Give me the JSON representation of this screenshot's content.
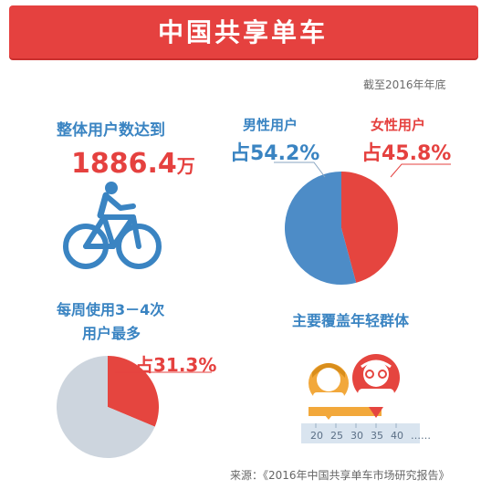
{
  "header": {
    "title": "中国共享单车",
    "as_of": "截至2016年年底"
  },
  "users": {
    "label": "整体用户数达到",
    "total": "1886.4",
    "unit": "万"
  },
  "usage": {
    "label_line1": "每周使用3－4次",
    "label_line2": "用户最多"
  },
  "age": {
    "label": "主要覆盖年轻群体",
    "ticks": [
      "20",
      "25",
      "30",
      "35",
      "40",
      "……"
    ]
  },
  "colors": {
    "blue": "#4d8cc7",
    "red": "#e5453f",
    "grey": "#cdd5de",
    "accent_orange": "#f0a020"
  },
  "icons": [
    "bicycle-icon",
    "young-man-icon",
    "older-man-icon"
  ],
  "source": "来源：《2016年中国共享单车市场研究报告》",
  "chart_data": [
    {
      "type": "pie",
      "title": "",
      "series": [
        {
          "name": "男性用户",
          "value": 54.2,
          "label": "占54.2%"
        },
        {
          "name": "女性用户",
          "value": 45.8,
          "label": "占45.8%"
        }
      ]
    },
    {
      "type": "pie",
      "title": "",
      "series": [
        {
          "name": "每周使用3－4次",
          "value": 31.3,
          "label": "占31.3%"
        },
        {
          "name": "",
          "value": 68.7
        }
      ]
    }
  ]
}
